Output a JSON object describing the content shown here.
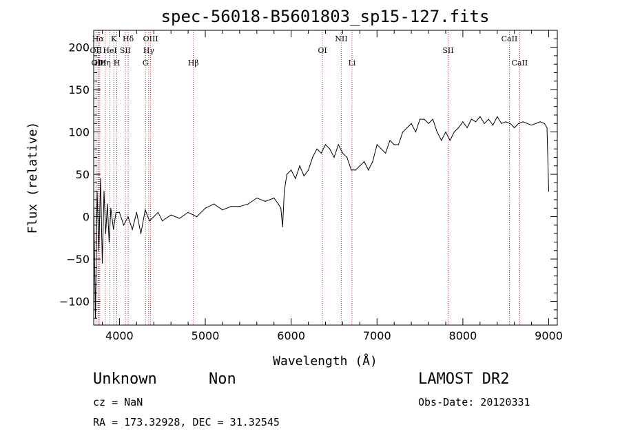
{
  "chart_data": {
    "type": "line",
    "title": "spec-56018-B5601803_sp15-127.fits",
    "xlabel": "Wavelength (Å)",
    "ylabel": "Flux (relative)",
    "xlim": [
      3700,
      9100
    ],
    "ylim": [
      -128,
      220
    ],
    "xticks": [
      4000,
      5000,
      6000,
      7000,
      8000,
      9000
    ],
    "yticks": [
      -100,
      -50,
      0,
      50,
      100,
      150,
      200
    ],
    "series": [
      {
        "name": "flux",
        "x": [
          3700,
          3720,
          3740,
          3760,
          3780,
          3800,
          3820,
          3840,
          3860,
          3880,
          3900,
          3930,
          3960,
          4000,
          4050,
          4100,
          4150,
          4200,
          4250,
          4300,
          4350,
          4400,
          4450,
          4500,
          4600,
          4700,
          4800,
          4900,
          5000,
          5100,
          5200,
          5300,
          5400,
          5500,
          5600,
          5700,
          5800,
          5850,
          5880,
          5900,
          5920,
          5950,
          6000,
          6050,
          6100,
          6150,
          6200,
          6250,
          6300,
          6350,
          6400,
          6450,
          6500,
          6550,
          6600,
          6650,
          6700,
          6750,
          6800,
          6850,
          6900,
          6950,
          7000,
          7050,
          7100,
          7150,
          7200,
          7250,
          7300,
          7350,
          7400,
          7450,
          7500,
          7550,
          7600,
          7650,
          7700,
          7750,
          7800,
          7850,
          7900,
          7950,
          8000,
          8050,
          8100,
          8150,
          8200,
          8250,
          8300,
          8350,
          8400,
          8450,
          8500,
          8550,
          8600,
          8650,
          8700,
          8750,
          8800,
          8850,
          8900,
          8950,
          8980,
          9000
        ],
        "y": [
          20,
          -120,
          30,
          -40,
          45,
          -55,
          30,
          -20,
          15,
          -30,
          10,
          -15,
          5,
          5,
          -10,
          0,
          -15,
          5,
          -20,
          8,
          -5,
          0,
          5,
          -5,
          2,
          -2,
          5,
          0,
          10,
          15,
          8,
          12,
          12,
          15,
          22,
          18,
          22,
          15,
          10,
          -12,
          30,
          50,
          55,
          45,
          60,
          48,
          55,
          70,
          80,
          75,
          85,
          80,
          70,
          85,
          75,
          70,
          55,
          55,
          60,
          65,
          55,
          65,
          85,
          80,
          75,
          90,
          85,
          85,
          100,
          105,
          110,
          100,
          115,
          115,
          110,
          115,
          100,
          90,
          100,
          90,
          100,
          105,
          112,
          105,
          115,
          112,
          118,
          110,
          115,
          108,
          118,
          110,
          112,
          110,
          105,
          110,
          112,
          110,
          108,
          110,
          112,
          110,
          105,
          30
        ]
      }
    ],
    "lines": [
      {
        "label": "Hα",
        "wl": 3750,
        "row": 1
      },
      {
        "label": "OII",
        "wl": 3727,
        "row": 2
      },
      {
        "label": "OIII",
        "wl": 3760,
        "row": 3
      },
      {
        "label": "Hε",
        "wl": 3770,
        "row": 3
      },
      {
        "label": "Hη",
        "wl": 3835,
        "row": 3
      },
      {
        "label": "HeI",
        "wl": 3889,
        "row": 2
      },
      {
        "label": "K",
        "wl": 3934,
        "row": 1
      },
      {
        "label": "H",
        "wl": 3969,
        "row": 3
      },
      {
        "label": "SII",
        "wl": 4069,
        "row": 2
      },
      {
        "label": "Hδ",
        "wl": 4102,
        "row": 1
      },
      {
        "label": "G",
        "wl": 4304,
        "row": 3
      },
      {
        "label": "Hγ",
        "wl": 4341,
        "row": 2
      },
      {
        "label": "OIII",
        "wl": 4363,
        "row": 1
      },
      {
        "label": "Hβ",
        "wl": 4861,
        "row": 3
      },
      {
        "label": "OI",
        "wl": 6364,
        "row": 2
      },
      {
        "label": "NII",
        "wl": 6584,
        "row": 1
      },
      {
        "label": "Li",
        "wl": 6708,
        "row": 3
      },
      {
        "label": "SII",
        "wl": 7828,
        "row": 2
      },
      {
        "label": "CaII",
        "wl": 8542,
        "row": 1
      },
      {
        "label": "CaII",
        "wl": 8662,
        "row": 3
      }
    ],
    "line_color": "#b22222"
  },
  "info": {
    "object_class": "Unknown",
    "subclass": "Non",
    "survey": "LAMOST DR2",
    "redshift": "cz = NaN",
    "obs_date": "Obs-Date: 20120331",
    "coords": "RA = 173.32928, DEC =  31.32545"
  }
}
